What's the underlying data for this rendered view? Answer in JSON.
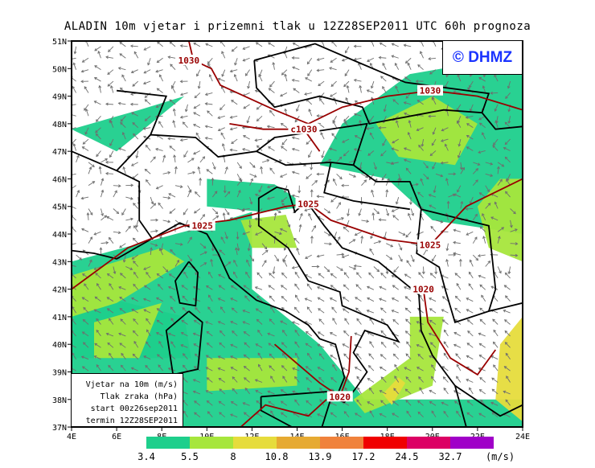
{
  "title": "ALADIN 10m vjetar i prizemni tlak u 12Z28SEP2011 UTC 60h prognoza",
  "logo": "© DHMZ",
  "legend_box": {
    "lines": [
      "Vjetar na 10m (m/s)",
      "Tlak zraka (hPa)",
      "start 00z26sep2011",
      "termin 12Z28SEP2011"
    ]
  },
  "axes": {
    "lon_labels": [
      "4E",
      "6E",
      "8E",
      "10E",
      "12E",
      "14E",
      "16E",
      "18E",
      "20E",
      "22E",
      "24E"
    ],
    "lat_labels": [
      "51N",
      "50N",
      "49N",
      "48N",
      "47N",
      "46N",
      "45N",
      "44N",
      "43N",
      "42N",
      "41N",
      "40N",
      "39N",
      "38N",
      "37N"
    ],
    "lon_range": [
      4,
      24
    ],
    "lat_range": [
      37,
      51
    ]
  },
  "isobars": {
    "color": "#990000",
    "labels": [
      {
        "text": "1030",
        "lon": 9.2,
        "lat": 50.3
      },
      {
        "text": "1030",
        "lon": 19.9,
        "lat": 49.2
      },
      {
        "text": "c1030",
        "lon": 14.3,
        "lat": 47.8
      },
      {
        "text": "1025",
        "lon": 14.5,
        "lat": 45.1
      },
      {
        "text": "1025",
        "lon": 9.8,
        "lat": 44.3
      },
      {
        "text": "1025",
        "lon": 19.9,
        "lat": 43.6
      },
      {
        "text": "1020",
        "lon": 19.6,
        "lat": 42
      },
      {
        "text": "1020",
        "lon": 15.9,
        "lat": 38.1
      }
    ]
  },
  "colorbar": {
    "unit": "(m/s)",
    "colors": [
      "#1ecf8c",
      "#a6e63c",
      "#e6dc3c",
      "#e6aa32",
      "#f0823c",
      "#f00000",
      "#dc0064",
      "#a000c8"
    ],
    "thresholds": [
      "3.4",
      "5.5",
      "8",
      "10.8",
      "13.9",
      "17.2",
      "24.5",
      "32.7"
    ]
  }
}
